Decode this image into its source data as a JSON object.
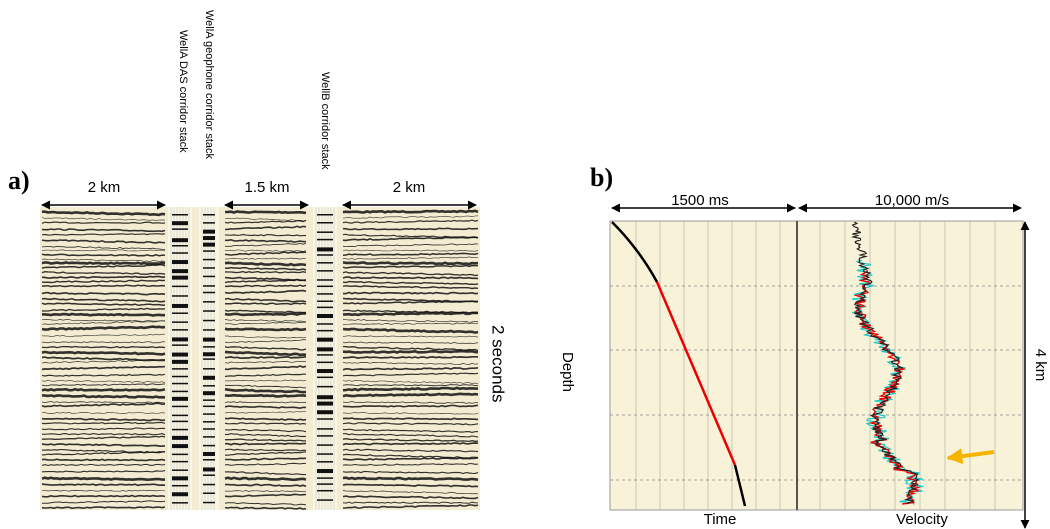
{
  "panel_a": {
    "label": "a)",
    "scale_left": "2 km",
    "das_stack": "WellA DAS  corridor stack",
    "geophone_stack": "WellA geophone  corridor stack",
    "scale_mid": "1.5 km",
    "wellb_stack": "WellB corridor stack",
    "scale_right": "2 km",
    "time_scale": "2 seconds"
  },
  "panel_b": {
    "label": "b)",
    "time_scale": "1500 ms",
    "velocity_scale": "10,000 m/s",
    "y_label": "Depth",
    "depth_scale": "4 km",
    "time_label": "Time",
    "velocity_label": "Velocity"
  }
}
